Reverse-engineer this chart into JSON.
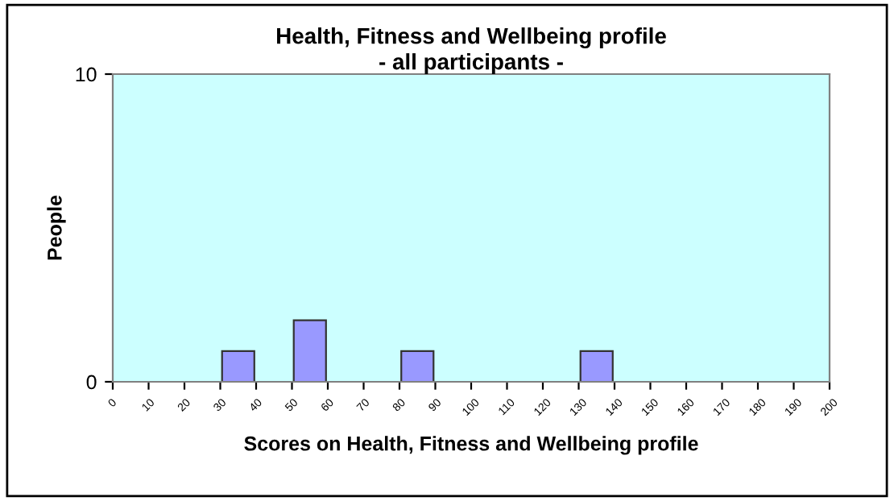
{
  "chart_data": {
    "type": "histogram",
    "title": "Health, Fitness and Wellbeing profile\n- all participants -",
    "xlabel": "Scores on Health, Fitness and Wellbeing profile",
    "ylabel": "People",
    "bins": [
      0,
      10,
      20,
      30,
      40,
      50,
      60,
      70,
      80,
      90,
      100,
      110,
      120,
      130,
      140,
      150,
      160,
      170,
      180,
      190,
      200
    ],
    "values": [
      0,
      0,
      0,
      1,
      0,
      2,
      0,
      0,
      1,
      0,
      0,
      0,
      0,
      1,
      0,
      0,
      0,
      0,
      0,
      0
    ],
    "color": "#9999ff",
    "xlim": [
      0,
      200
    ],
    "xticks": [
      0,
      10,
      20,
      30,
      40,
      50,
      60,
      70,
      80,
      90,
      100,
      110,
      120,
      130,
      140,
      150,
      160,
      170,
      180,
      190,
      200
    ],
    "ylim": [
      0,
      10
    ],
    "yticks": [
      0,
      10
    ],
    "grid": false,
    "legend": false
  }
}
